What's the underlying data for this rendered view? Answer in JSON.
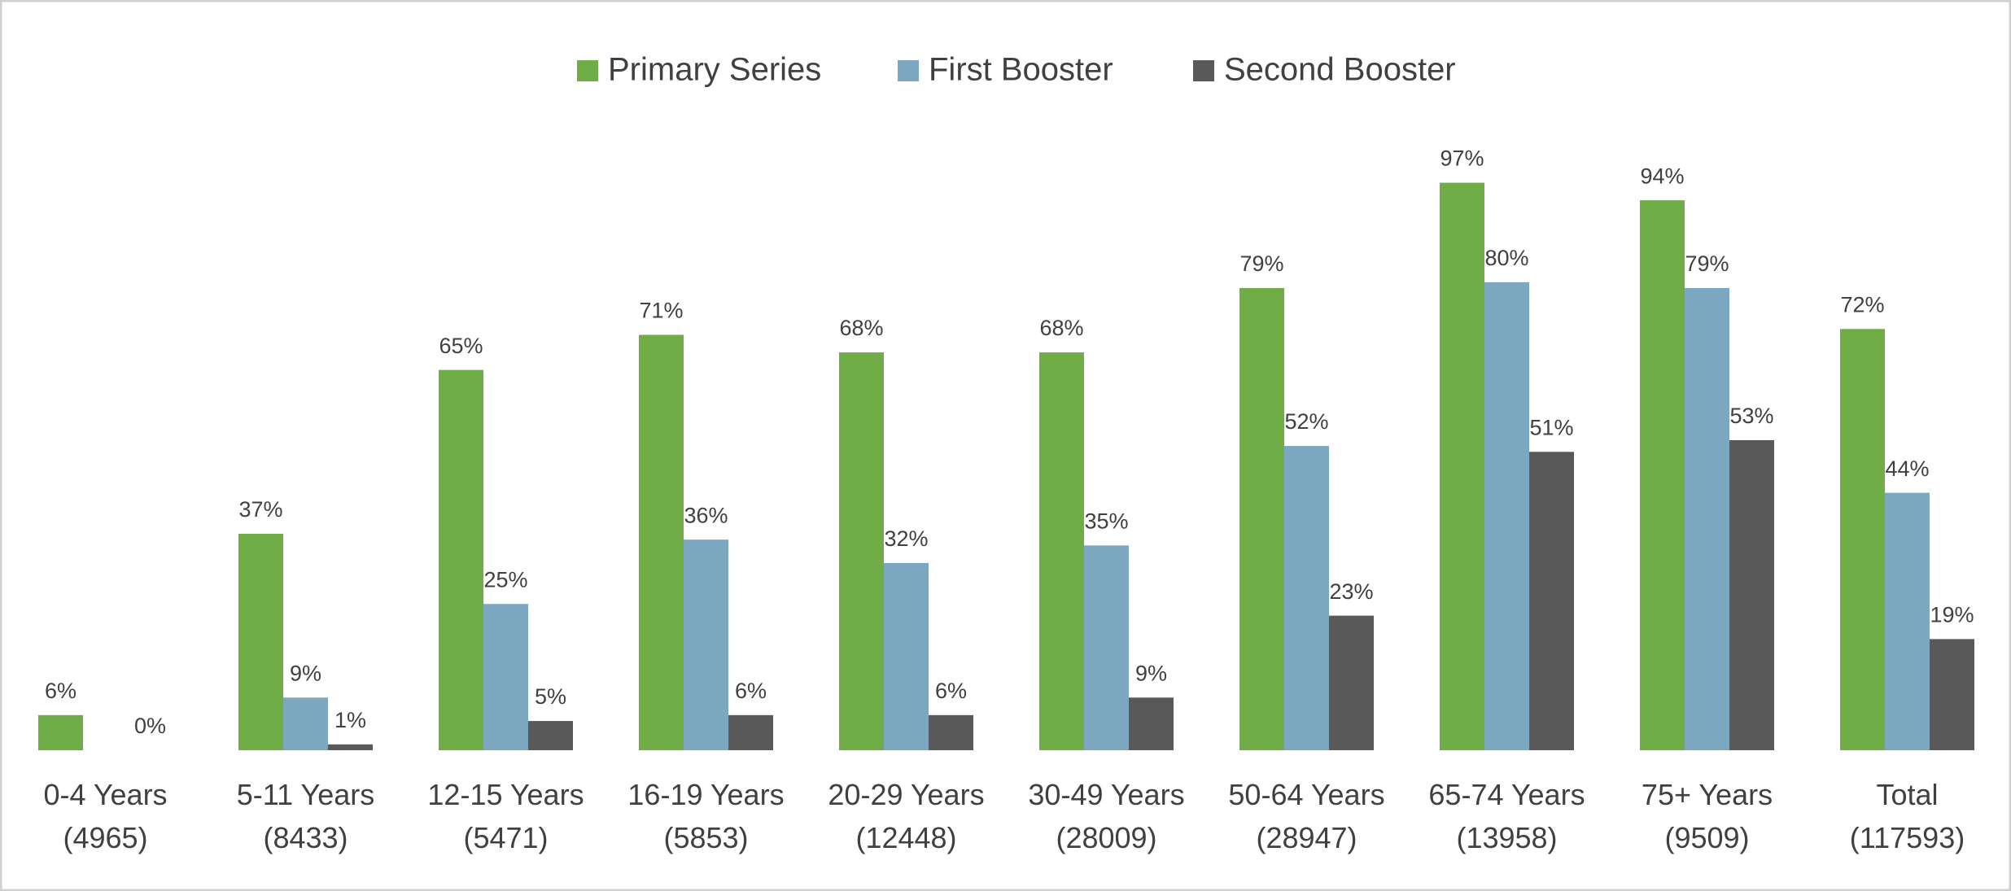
{
  "chart_data": {
    "type": "bar",
    "categories": [
      [
        "0-4 Years",
        "(4965)"
      ],
      [
        "5-11 Years",
        "(8433)"
      ],
      [
        "12-15 Years",
        "(5471)"
      ],
      [
        "16-19 Years",
        "(5853)"
      ],
      [
        "20-29 Years",
        "(12448)"
      ],
      [
        "30-49 Years",
        "(28009)"
      ],
      [
        "50-64 Years",
        "(28947)"
      ],
      [
        "65-74 Years",
        "(13958)"
      ],
      [
        "75+ Years",
        "(9509)"
      ],
      [
        "Total",
        "(117593)"
      ]
    ],
    "series": [
      {
        "name": "Primary Series",
        "color": "#70ad47",
        "values": [
          6,
          37,
          65,
          71,
          68,
          68,
          79,
          97,
          94,
          72
        ],
        "value_labels": [
          "6%",
          "37%",
          "65%",
          "71%",
          "68%",
          "68%",
          "79%",
          "97%",
          "94%",
          "72%"
        ]
      },
      {
        "name": "First Booster",
        "color": "#7ba7c1",
        "values": [
          null,
          9,
          25,
          36,
          32,
          35,
          52,
          80,
          79,
          44
        ],
        "value_labels": [
          null,
          "9%",
          "25%",
          "36%",
          "32%",
          "35%",
          "52%",
          "80%",
          "79%",
          "44%"
        ]
      },
      {
        "name": "Second Booster",
        "color": "#595959",
        "values": [
          0,
          1,
          5,
          6,
          6,
          9,
          23,
          51,
          53,
          19
        ],
        "value_labels": [
          "0%",
          "1%",
          "5%",
          "6%",
          "6%",
          "9%",
          "23%",
          "51%",
          "53%",
          "19%"
        ]
      }
    ],
    "ylim": [
      0,
      100
    ],
    "legend": "top"
  }
}
